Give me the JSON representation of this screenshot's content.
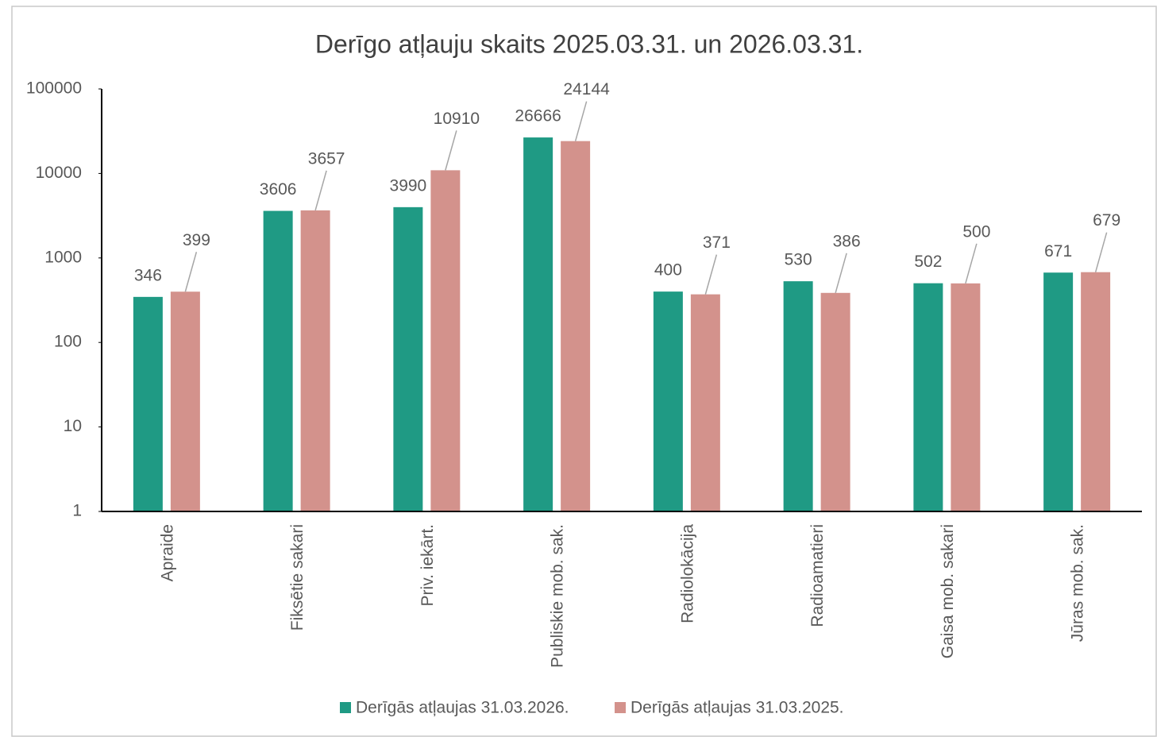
{
  "chart_data": {
    "type": "bar",
    "title": "Derīgo atļauju skaits 2025.03.31. un 2026.03.31.",
    "categories": [
      "Apraide",
      "Fiksētie sakari",
      "Priv. iekārt.",
      "Publiskie mob. sak.",
      "Radiolokācija",
      "Radioamatieri",
      "Gaisa mob. sakari",
      "Jūras mob. sak."
    ],
    "series": [
      {
        "name": "Derīgās atļaujas 31.03.2026.",
        "color": "#1f9a84",
        "values": [
          346,
          3606,
          3990,
          26666,
          400,
          530,
          502,
          671
        ]
      },
      {
        "name": "Derīgās atļaujas 31.03.2025.",
        "color": "#d3928c",
        "values": [
          399,
          3657,
          10910,
          24144,
          371,
          386,
          500,
          679
        ]
      }
    ],
    "ylim": [
      1,
      100000
    ],
    "yticks": [
      1,
      10,
      100,
      1000,
      10000,
      100000
    ],
    "log_scale": true,
    "grid": false,
    "legend": "bottom"
  }
}
